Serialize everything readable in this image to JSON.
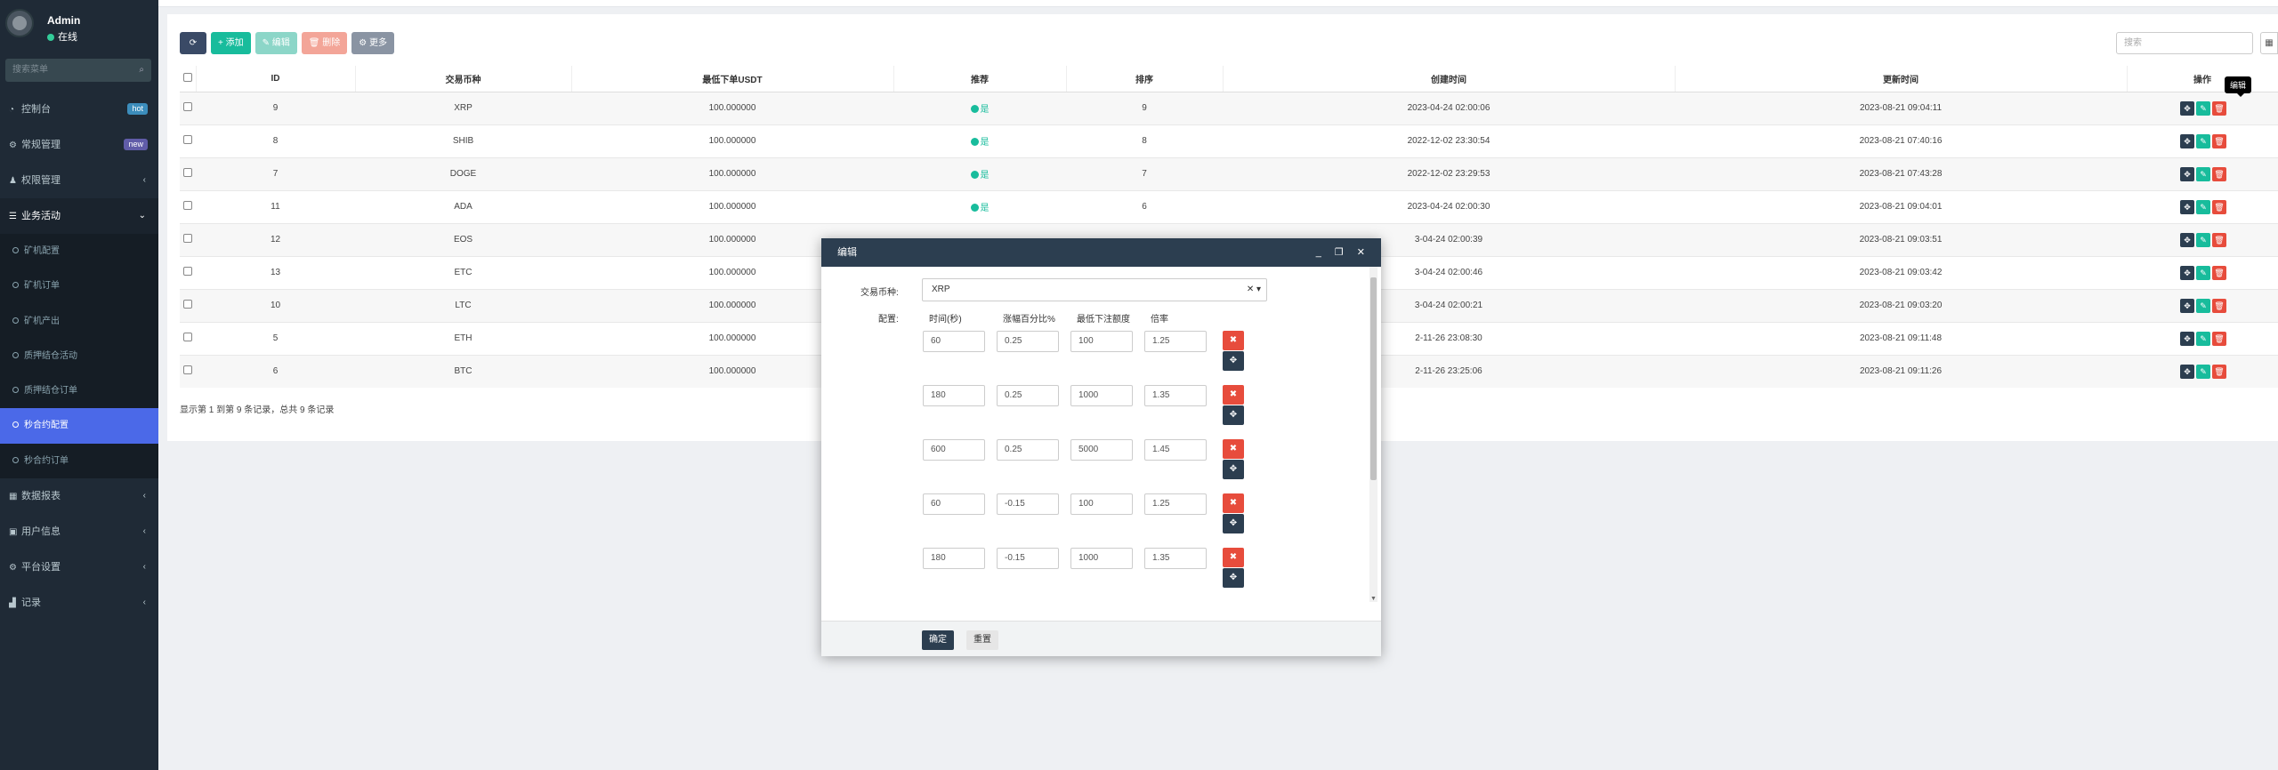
{
  "user": {
    "name": "Admin",
    "status": "在线"
  },
  "sidebar": {
    "search_placeholder": "搜索菜单",
    "items": [
      {
        "label": "控制台",
        "icon": "dashboard-icon",
        "badge": "hot",
        "badge_color": "#3c8dbc"
      },
      {
        "label": "常规管理",
        "icon": "cogs-icon",
        "badge": "new",
        "badge_color": "#605ca8"
      },
      {
        "label": "权限管理",
        "icon": "group-icon",
        "arrow": "‹"
      },
      {
        "label": "业务活动",
        "icon": "list-icon",
        "arrow": "⌄"
      }
    ],
    "sub_items": [
      {
        "label": "矿机配置"
      },
      {
        "label": "矿机订单"
      },
      {
        "label": "矿机产出"
      },
      {
        "label": "质押结仓活动"
      },
      {
        "label": "质押结仓订单"
      },
      {
        "label": "秒合约配置",
        "active": true
      },
      {
        "label": "秒合约订单"
      }
    ],
    "items2": [
      {
        "label": "数据报表",
        "icon": "table-icon",
        "arrow": "‹"
      },
      {
        "label": "用户信息",
        "icon": "book-icon",
        "arrow": "‹"
      },
      {
        "label": "平台设置",
        "icon": "gear-icon",
        "arrow": "‹"
      },
      {
        "label": "记录",
        "icon": "chart-icon",
        "arrow": "‹"
      }
    ]
  },
  "toolbar": {
    "refresh": "⟳",
    "add": "+ 添加",
    "edit": "✎ 编辑",
    "delete": "🗑 删除",
    "more": "⚙ 更多"
  },
  "search": {
    "placeholder": "搜索"
  },
  "table": {
    "headers": [
      "",
      "ID",
      "交易币种",
      "最低下单USDT",
      "推荐",
      "排序",
      "创建时间",
      "更新时间",
      "操作"
    ],
    "rows": [
      {
        "id": "9",
        "coin": "XRP",
        "min": "100.000000",
        "rec": "是",
        "sort": "9",
        "created": "2023-04-24 02:00:06",
        "updated": "2023-08-21 09:04:11"
      },
      {
        "id": "8",
        "coin": "SHIB",
        "min": "100.000000",
        "rec": "是",
        "sort": "8",
        "created": "2022-12-02 23:30:54",
        "updated": "2023-08-21 07:40:16"
      },
      {
        "id": "7",
        "coin": "DOGE",
        "min": "100.000000",
        "rec": "是",
        "sort": "7",
        "created": "2022-12-02 23:29:53",
        "updated": "2023-08-21 07:43:28"
      },
      {
        "id": "11",
        "coin": "ADA",
        "min": "100.000000",
        "rec": "是",
        "sort": "6",
        "created": "2023-04-24 02:00:30",
        "updated": "2023-08-21 09:04:01"
      },
      {
        "id": "12",
        "coin": "EOS",
        "min": "100.000000",
        "rec": "",
        "sort": "",
        "created": "3-04-24 02:00:39",
        "updated": "2023-08-21 09:03:51"
      },
      {
        "id": "13",
        "coin": "ETC",
        "min": "100.000000",
        "rec": "",
        "sort": "",
        "created": "3-04-24 02:00:46",
        "updated": "2023-08-21 09:03:42"
      },
      {
        "id": "10",
        "coin": "LTC",
        "min": "100.000000",
        "rec": "",
        "sort": "",
        "created": "3-04-24 02:00:21",
        "updated": "2023-08-21 09:03:20"
      },
      {
        "id": "5",
        "coin": "ETH",
        "min": "100.000000",
        "rec": "",
        "sort": "",
        "created": "2-11-26 23:08:30",
        "updated": "2023-08-21 09:11:48"
      },
      {
        "id": "6",
        "coin": "BTC",
        "min": "100.000000",
        "rec": "",
        "sort": "",
        "created": "2-11-26 23:25:06",
        "updated": "2023-08-21 09:11:26"
      }
    ],
    "tooltip": "编辑"
  },
  "pager": {
    "info": "显示第 1 到第 9 条记录，总共 9 条记录"
  },
  "modal": {
    "title": "编辑",
    "controls": "_ ❐ ✕",
    "coin_label": "交易币种:",
    "coin_value": "XRP",
    "config_label": "配置:",
    "config_headers": [
      "时间(秒)",
      "涨幅百分比%",
      "最低下注额度",
      "倍率"
    ],
    "config_rows": [
      [
        "60",
        "0.25",
        "100",
        "1.25"
      ],
      [
        "180",
        "0.25",
        "1000",
        "1.35"
      ],
      [
        "600",
        "0.25",
        "5000",
        "1.45"
      ],
      [
        "60",
        "-0.15",
        "100",
        "1.25"
      ],
      [
        "180",
        "-0.15",
        "1000",
        "1.35"
      ]
    ],
    "ok": "确定",
    "reset": "重置"
  }
}
